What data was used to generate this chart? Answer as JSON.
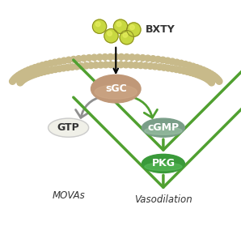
{
  "title": "",
  "bxty_label": "BXTY",
  "sgc_label": "sGC",
  "gtp_label": "GTP",
  "cgmp_label": "cGMP",
  "pkg_label": "PKG",
  "movas_label": "MOVAs",
  "vasodilation_label": "Vasodilation",
  "bg_color": "#ffffff",
  "membrane_color": "#d4cba0",
  "membrane_head_color": "#c8ba8a",
  "sgc_color1": "#b08060",
  "sgc_color2": "#c09070",
  "cgmp_color1": "#80a080",
  "cgmp_color2": "#a0c090",
  "pkg_color1": "#40a040",
  "pkg_color2": "#60c060",
  "gtp_color": "#f0f0e8",
  "bxty_circle_color": "#c8d840",
  "arrow_black": "#000000",
  "arrow_green": "#50a030",
  "arrow_gray": "#909090"
}
